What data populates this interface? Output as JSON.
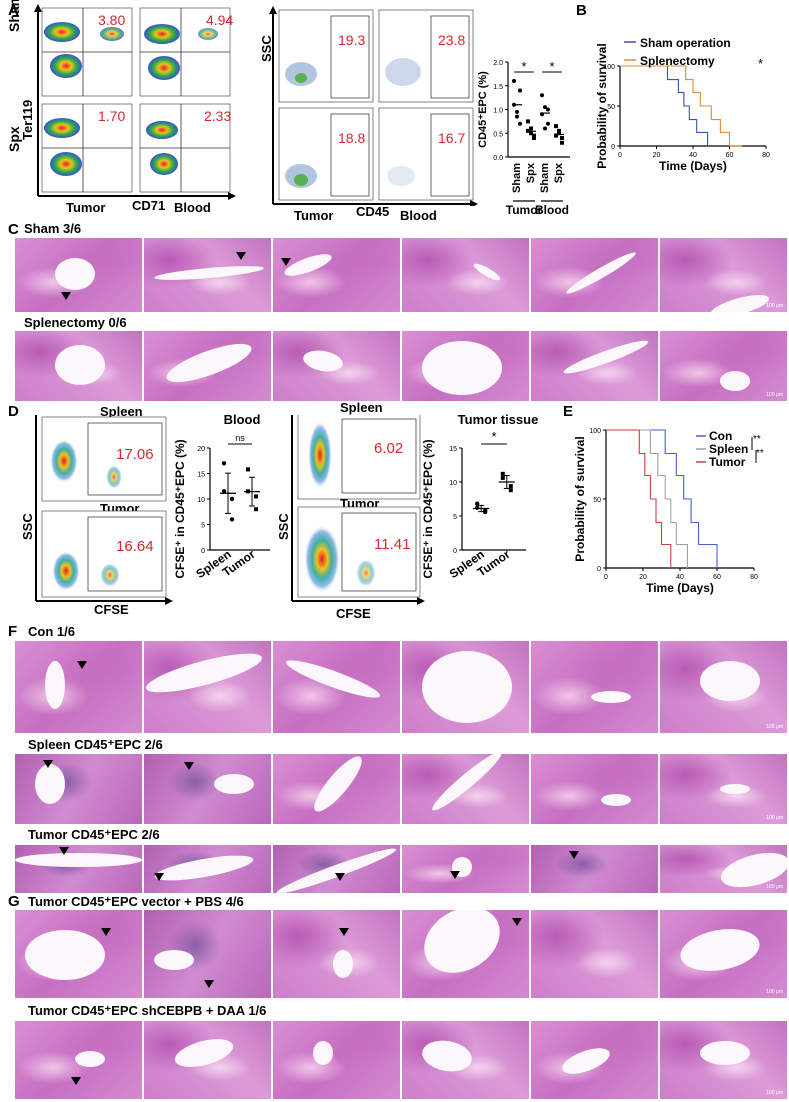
{
  "panels": {
    "A": "A",
    "B": "B",
    "C": "C",
    "D": "D",
    "E": "E",
    "F": "F",
    "G": "G"
  },
  "panelA": {
    "row_labels": [
      "Sham",
      "Spx"
    ],
    "y_axis": "Ter119",
    "x_axis": "CD71",
    "tumor_label": "Tumor",
    "blood_label": "Blood",
    "ter_values": [
      "3.80",
      "4.94",
      "1.70",
      "2.33"
    ],
    "ssc_label": "SSC",
    "cd45_label": "CD45",
    "cd45_values": [
      "19.3",
      "23.8",
      "18.8",
      "16.7"
    ],
    "gate_text": "CD45+EPC"
  },
  "chart_A": {
    "ylabel": "CD45⁺EPC (%)",
    "yticks": [
      "0.0",
      "0.5",
      "1.0",
      "1.5",
      "2.0"
    ],
    "ylim": [
      0,
      2.0
    ],
    "categories": [
      "Sham",
      "Spx",
      "Sham",
      "Spx"
    ],
    "groups": [
      "Tumor",
      "Blood"
    ],
    "sig": [
      "*",
      "*"
    ],
    "points": [
      [
        1.1,
        0.85,
        1.4,
        1.6,
        0.95,
        0.7
      ],
      [
        0.55,
        0.6,
        0.4,
        0.75,
        0.5,
        0.45
      ],
      [
        0.9,
        1.05,
        0.7,
        1.3,
        0.6,
        1.0
      ],
      [
        0.45,
        0.55,
        0.3,
        0.65,
        0.5,
        0.4
      ]
    ]
  },
  "chart_B": {
    "type": "line",
    "ylabel": "Probability of survival",
    "xlabel": "Time (Days)",
    "xticks": [
      "0",
      "20",
      "40",
      "60",
      "80"
    ],
    "yticks": [
      "0",
      "50",
      "100"
    ],
    "xlim": [
      0,
      80
    ],
    "ylim": [
      0,
      100
    ],
    "legend": [
      "Sham operation",
      "Splenectomy"
    ],
    "star": "*",
    "series": [
      {
        "name": "Sham operation",
        "color": "#3a4fc0",
        "steps": [
          [
            0,
            100
          ],
          [
            26,
            100
          ],
          [
            26,
            83
          ],
          [
            32,
            83
          ],
          [
            32,
            67
          ],
          [
            35,
            67
          ],
          [
            35,
            50
          ],
          [
            38,
            50
          ],
          [
            38,
            33
          ],
          [
            42,
            33
          ],
          [
            42,
            17
          ],
          [
            48,
            17
          ],
          [
            48,
            0
          ]
        ]
      },
      {
        "name": "Splenectomy",
        "color": "#e08a3c",
        "steps": [
          [
            0,
            100
          ],
          [
            36,
            100
          ],
          [
            36,
            83
          ],
          [
            40,
            83
          ],
          [
            40,
            67
          ],
          [
            44,
            67
          ],
          [
            44,
            50
          ],
          [
            50,
            50
          ],
          [
            50,
            33
          ],
          [
            55,
            33
          ],
          [
            55,
            17
          ],
          [
            60,
            17
          ],
          [
            60,
            0
          ],
          [
            67,
            0
          ]
        ]
      }
    ]
  },
  "panelC": {
    "row1": "Sham 3/6",
    "row2": "Splenectomy 0/6"
  },
  "panelD": {
    "spleen": "Spleen",
    "tumor": "Tumor",
    "ssc": "SSC",
    "cfse": "CFSE",
    "values": [
      "17.06",
      "16.64",
      "6.02",
      "11.41"
    ],
    "gate_text": "CFSE+CD45+EPC"
  },
  "chart_D1": {
    "title": "Blood",
    "ylabel": "CFSE⁺ in CD45⁺EPC (%)",
    "yticks": [
      "0",
      "5",
      "10",
      "15",
      "20"
    ],
    "ylim": [
      0,
      20
    ],
    "categories": [
      "Spleen",
      "Tumor"
    ],
    "sig": "ns",
    "points": [
      [
        17,
        6,
        11.5,
        10
      ],
      [
        15.8,
        10.5,
        11.5,
        8
      ]
    ]
  },
  "chart_D2": {
    "title": "Tumor tissue",
    "ylabel": "CFSE⁺ in CD45⁺EPC (%)",
    "yticks": [
      "0",
      "5",
      "10",
      "15"
    ],
    "ylim": [
      0,
      15
    ],
    "categories": [
      "Spleen",
      "Tumor"
    ],
    "sig": "*",
    "points": [
      [
        6.8,
        5.8,
        6.2,
        5.6
      ],
      [
        11.2,
        8.8,
        10.6,
        9.4
      ]
    ]
  },
  "chart_E": {
    "type": "line",
    "ylabel": "Probability of survival",
    "xlabel": "Time (Days)",
    "xticks": [
      "0",
      "20",
      "40",
      "60",
      "80"
    ],
    "yticks": [
      "0",
      "50",
      "100"
    ],
    "xlim": [
      0,
      80
    ],
    "ylim": [
      0,
      100
    ],
    "legend": [
      "Con",
      "Spleen",
      "Tumor"
    ],
    "sig": [
      "**",
      "**"
    ],
    "series": [
      {
        "name": "Con",
        "color": "#4a5ed0",
        "steps": [
          [
            0,
            100
          ],
          [
            32,
            100
          ],
          [
            32,
            83
          ],
          [
            38,
            83
          ],
          [
            38,
            67
          ],
          [
            42,
            67
          ],
          [
            42,
            50
          ],
          [
            46,
            50
          ],
          [
            46,
            33
          ],
          [
            50,
            33
          ],
          [
            50,
            17
          ],
          [
            60,
            17
          ],
          [
            60,
            0
          ]
        ]
      },
      {
        "name": "Spleen",
        "color": "#a0a0a0",
        "steps": [
          [
            0,
            100
          ],
          [
            24,
            100
          ],
          [
            24,
            83
          ],
          [
            28,
            83
          ],
          [
            28,
            67
          ],
          [
            32,
            67
          ],
          [
            32,
            50
          ],
          [
            35,
            50
          ],
          [
            35,
            33
          ],
          [
            38,
            33
          ],
          [
            38,
            17
          ],
          [
            44,
            17
          ],
          [
            44,
            0
          ]
        ]
      },
      {
        "name": "Tumor",
        "color": "#c84040",
        "steps": [
          [
            0,
            100
          ],
          [
            18,
            100
          ],
          [
            18,
            83
          ],
          [
            21,
            83
          ],
          [
            21,
            67
          ],
          [
            24,
            67
          ],
          [
            24,
            50
          ],
          [
            27,
            50
          ],
          [
            27,
            33
          ],
          [
            30,
            33
          ],
          [
            30,
            17
          ],
          [
            35,
            17
          ],
          [
            35,
            0
          ]
        ]
      }
    ]
  },
  "panelF": {
    "row1": "Con 1/6",
    "row2": "Spleen CD45⁺EPC 2/6",
    "row3": "Tumor CD45⁺EPC 2/6"
  },
  "panelG": {
    "row1": "Tumor CD45⁺EPC vector + PBS  4/6",
    "row2": "Tumor CD45⁺EPC shCEBPB + DAA 1/6"
  },
  "scale": "100 μm"
}
